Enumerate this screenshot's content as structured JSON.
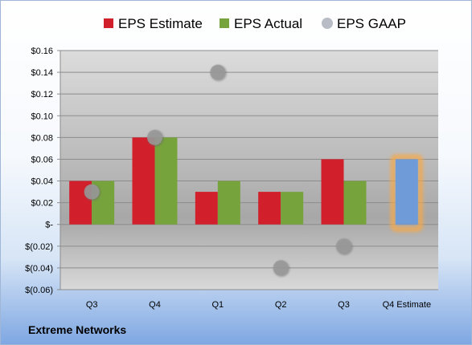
{
  "company": "Extreme Networks",
  "colors": {
    "estimate": "#d21f2c",
    "actual": "#77a33d",
    "gaap": "#b8bcc4",
    "forecast_bar": "#6f9cd8",
    "forecast_glow": "#f6a94a"
  },
  "chart_data": {
    "type": "bar",
    "categories": [
      "Q3",
      "Q4",
      "Q1",
      "Q2",
      "Q3",
      "Q4 Estimate"
    ],
    "series": [
      {
        "name": "EPS Estimate",
        "values": [
          0.04,
          0.08,
          0.03,
          0.03,
          0.06,
          0.06
        ]
      },
      {
        "name": "EPS Actual",
        "values": [
          0.04,
          0.08,
          0.04,
          0.03,
          0.04,
          null
        ]
      },
      {
        "name": "EPS GAAP",
        "values": [
          0.03,
          0.08,
          0.14,
          -0.04,
          -0.02,
          null
        ]
      }
    ],
    "gaap_style": "scatter",
    "ylim": [
      -0.06,
      0.16
    ],
    "ytick_values": [
      0.16,
      0.14,
      0.12,
      0.1,
      0.08,
      0.06,
      0.04,
      0.02,
      0,
      -0.02,
      -0.04,
      -0.06
    ],
    "ytick_labels": [
      "$0.16",
      "$0.14",
      "$0.12",
      "$0.10",
      "$0.08",
      "$0.06",
      "$0.04",
      "$0.02",
      "$-",
      "$(0.02)",
      "$(0.04)",
      "$(0.06)"
    ],
    "legend_position": "top",
    "grid": true
  }
}
